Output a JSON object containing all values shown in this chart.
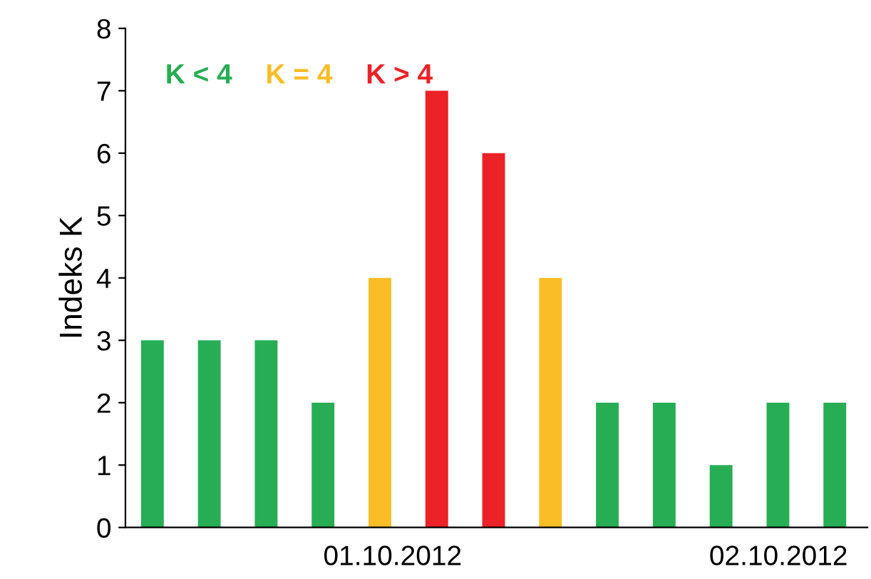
{
  "chart_data": {
    "type": "bar",
    "ylabel": "Indeks K",
    "categories": [
      null,
      null,
      null,
      null,
      null,
      null,
      null,
      null,
      null,
      null,
      null,
      null,
      null
    ],
    "series": [
      {
        "name": "K < 4",
        "color": "#27ae54",
        "values": [
          3,
          3,
          3,
          2,
          null,
          null,
          null,
          null,
          2,
          2,
          1,
          2,
          2
        ]
      },
      {
        "name": "K = 4",
        "color": "#f9bd25",
        "values": [
          null,
          null,
          null,
          null,
          4,
          null,
          null,
          4,
          null,
          null,
          null,
          null,
          null
        ]
      },
      {
        "name": "K > 4",
        "color": "#ec2227",
        "values": [
          null,
          null,
          null,
          null,
          null,
          7,
          6,
          null,
          null,
          null,
          null,
          null,
          null
        ]
      }
    ],
    "ylim": [
      0,
      8
    ],
    "yticks": [
      0,
      1,
      2,
      3,
      4,
      5,
      6,
      7,
      8
    ],
    "grid": false,
    "legend": "top left",
    "annotations": [
      "01.10.2012",
      "02.10.2012"
    ]
  }
}
